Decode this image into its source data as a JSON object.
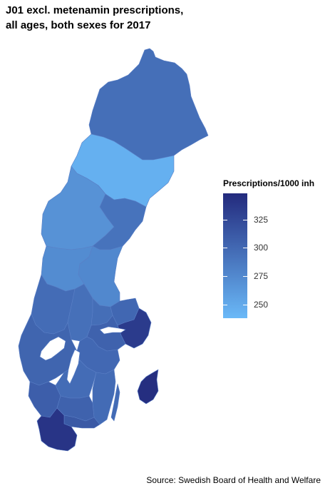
{
  "title_lines": [
    "J01 excl. metenamin prescriptions,",
    "all ages, both sexes for 2017"
  ],
  "legend": {
    "title": "Prescriptions/1000 inh",
    "min": 238,
    "max": 348,
    "ticks": [
      250,
      275,
      300,
      325
    ],
    "color_low": "#6ab9f8",
    "color_high": "#232a7d"
  },
  "source": "Source: Swedish Board of Health and Welfare",
  "map_data": {
    "type": "choropleth",
    "unit": "Prescriptions/1000 inh",
    "year": 2017,
    "regions": [
      {
        "id": "norrbotten",
        "value": 295
      },
      {
        "id": "vasterbotten",
        "value": 245
      },
      {
        "id": "jamtland",
        "value": 268
      },
      {
        "id": "vasternorrland",
        "value": 292
      },
      {
        "id": "gavleborg",
        "value": 276
      },
      {
        "id": "dalarna",
        "value": 273
      },
      {
        "id": "varmland",
        "value": 297
      },
      {
        "id": "orebro",
        "value": 294
      },
      {
        "id": "vastmanland",
        "value": 296
      },
      {
        "id": "uppsala",
        "value": 301
      },
      {
        "id": "stockholm",
        "value": 335
      },
      {
        "id": "sodermanland",
        "value": 305
      },
      {
        "id": "ostergotland",
        "value": 300
      },
      {
        "id": "vastra-gotaland",
        "value": 303
      },
      {
        "id": "jonkoping",
        "value": 297
      },
      {
        "id": "halland",
        "value": 308
      },
      {
        "id": "kronoberg",
        "value": 305
      },
      {
        "id": "kalmar",
        "value": 298
      },
      {
        "id": "gotland",
        "value": 345
      },
      {
        "id": "blekinge",
        "value": 312
      },
      {
        "id": "skane",
        "value": 340
      }
    ]
  }
}
